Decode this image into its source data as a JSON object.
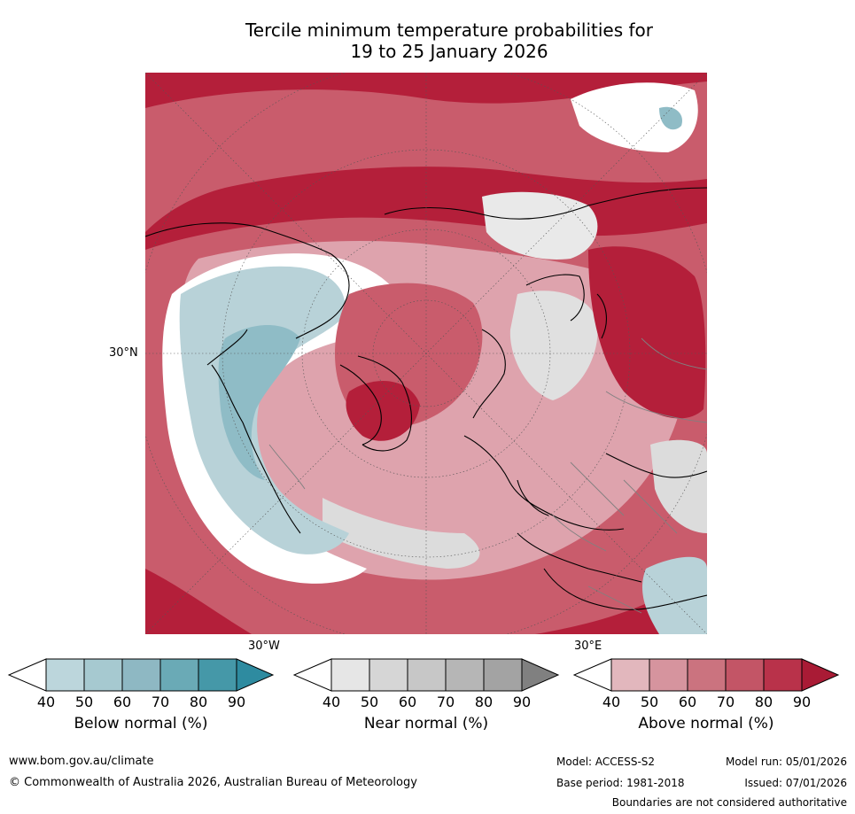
{
  "title": {
    "line1": "Tercile minimum temperature probabilities for",
    "line2": "19 to 25 January 2026"
  },
  "map": {
    "projection": "north-polar-stereographic",
    "labels": {
      "lat_30n": "30°N",
      "lon_30w": "30°W",
      "lon_30e": "30°E"
    },
    "colors": {
      "above_dark": "#b41f3a",
      "above_mid": "#c95c6c",
      "above_light": "#dea3ad",
      "near": "#dcdcdc",
      "below_light": "#b8d2d8",
      "below_mid": "#8fbcc6",
      "land_outline": "#000000",
      "border": "#808080",
      "graticule": "#555555"
    }
  },
  "colorbars": [
    {
      "label": "Below normal (%)",
      "ticks": [
        "40",
        "50",
        "60",
        "70",
        "80",
        "90"
      ],
      "colors": [
        "#ffffff",
        "#bcd6dc",
        "#a6c9d0",
        "#8eb8c3",
        "#6aaab6",
        "#4598a8",
        "#2e8ba0"
      ]
    },
    {
      "label": "Near normal (%)",
      "ticks": [
        "40",
        "50",
        "60",
        "70",
        "80",
        "90"
      ],
      "colors": [
        "#ffffff",
        "#e6e6e6",
        "#d6d6d6",
        "#c7c7c7",
        "#b6b6b6",
        "#a3a3a3",
        "#808080"
      ]
    },
    {
      "label": "Above normal (%)",
      "ticks": [
        "40",
        "50",
        "60",
        "70",
        "80",
        "90"
      ],
      "colors": [
        "#ffffff",
        "#e2b7bd",
        "#d6949e",
        "#cb737f",
        "#c35566",
        "#b9324a",
        "#a91b35"
      ]
    }
  ],
  "footer": {
    "website": "www.bom.gov.au/climate",
    "copyright": "© Commonwealth of Australia 2026, Australian Bureau of Meteorology",
    "model": "Model: ACCESS-S2",
    "model_run": "Model run: 05/01/2026",
    "base_period": "Base period: 1981-2018",
    "issued": "Issued: 07/01/2026",
    "disclaimer": "Boundaries are not considered authoritative"
  }
}
